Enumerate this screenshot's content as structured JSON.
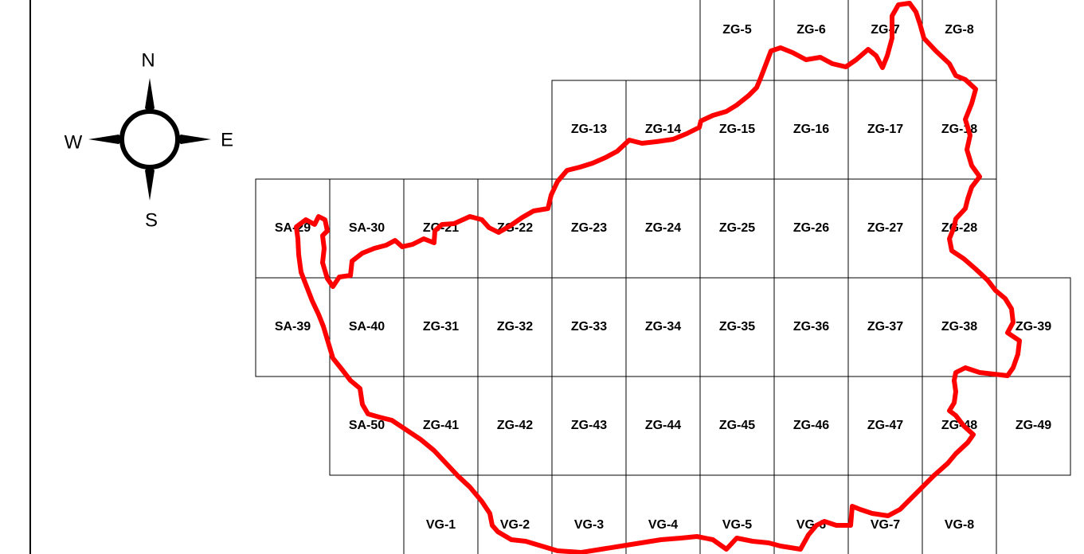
{
  "colors": {
    "boundary": "#ff0000",
    "grid": "#000000",
    "background": "#ffffff"
  },
  "compass": {
    "north": "N",
    "south": "S",
    "east": "E",
    "west": "W",
    "icon": "compass-rose-icon"
  },
  "sheets": [
    {
      "id": "ZG-5",
      "row": 0,
      "col": 6
    },
    {
      "id": "ZG-6",
      "row": 0,
      "col": 7
    },
    {
      "id": "ZG-7",
      "row": 0,
      "col": 8
    },
    {
      "id": "ZG-8",
      "row": 0,
      "col": 9
    },
    {
      "id": "ZG-13",
      "row": 1,
      "col": 4
    },
    {
      "id": "ZG-14",
      "row": 1,
      "col": 5
    },
    {
      "id": "ZG-15",
      "row": 1,
      "col": 6
    },
    {
      "id": "ZG-16",
      "row": 1,
      "col": 7
    },
    {
      "id": "ZG-17",
      "row": 1,
      "col": 8
    },
    {
      "id": "ZG-18",
      "row": 1,
      "col": 9
    },
    {
      "id": "SA-29",
      "row": 2,
      "col": 0
    },
    {
      "id": "SA-30",
      "row": 2,
      "col": 1
    },
    {
      "id": "ZG-21",
      "row": 2,
      "col": 2
    },
    {
      "id": "ZG-22",
      "row": 2,
      "col": 3
    },
    {
      "id": "ZG-23",
      "row": 2,
      "col": 4
    },
    {
      "id": "ZG-24",
      "row": 2,
      "col": 5
    },
    {
      "id": "ZG-25",
      "row": 2,
      "col": 6
    },
    {
      "id": "ZG-26",
      "row": 2,
      "col": 7
    },
    {
      "id": "ZG-27",
      "row": 2,
      "col": 8
    },
    {
      "id": "ZG-28",
      "row": 2,
      "col": 9
    },
    {
      "id": "SA-39",
      "row": 3,
      "col": 0
    },
    {
      "id": "SA-40",
      "row": 3,
      "col": 1
    },
    {
      "id": "ZG-31",
      "row": 3,
      "col": 2
    },
    {
      "id": "ZG-32",
      "row": 3,
      "col": 3
    },
    {
      "id": "ZG-33",
      "row": 3,
      "col": 4
    },
    {
      "id": "ZG-34",
      "row": 3,
      "col": 5
    },
    {
      "id": "ZG-35",
      "row": 3,
      "col": 6
    },
    {
      "id": "ZG-36",
      "row": 3,
      "col": 7
    },
    {
      "id": "ZG-37",
      "row": 3,
      "col": 8
    },
    {
      "id": "ZG-38",
      "row": 3,
      "col": 9
    },
    {
      "id": "ZG-39",
      "row": 3,
      "col": 10
    },
    {
      "id": "SA-50",
      "row": 4,
      "col": 1
    },
    {
      "id": "ZG-41",
      "row": 4,
      "col": 2
    },
    {
      "id": "ZG-42",
      "row": 4,
      "col": 3
    },
    {
      "id": "ZG-43",
      "row": 4,
      "col": 4
    },
    {
      "id": "ZG-44",
      "row": 4,
      "col": 5
    },
    {
      "id": "ZG-45",
      "row": 4,
      "col": 6
    },
    {
      "id": "ZG-46",
      "row": 4,
      "col": 7
    },
    {
      "id": "ZG-47",
      "row": 4,
      "col": 8
    },
    {
      "id": "ZG-48",
      "row": 4,
      "col": 9
    },
    {
      "id": "ZG-49",
      "row": 4,
      "col": 10
    },
    {
      "id": "VG-1",
      "row": 5,
      "col": 2
    },
    {
      "id": "VG-2",
      "row": 5,
      "col": 3
    },
    {
      "id": "VG-3",
      "row": 5,
      "col": 4
    },
    {
      "id": "VG-4",
      "row": 5,
      "col": 5
    },
    {
      "id": "VG-5",
      "row": 5,
      "col": 6
    },
    {
      "id": "VG-6",
      "row": 5,
      "col": 7
    },
    {
      "id": "VG-7",
      "row": 5,
      "col": 8
    },
    {
      "id": "VG-8",
      "row": 5,
      "col": 9
    }
  ]
}
